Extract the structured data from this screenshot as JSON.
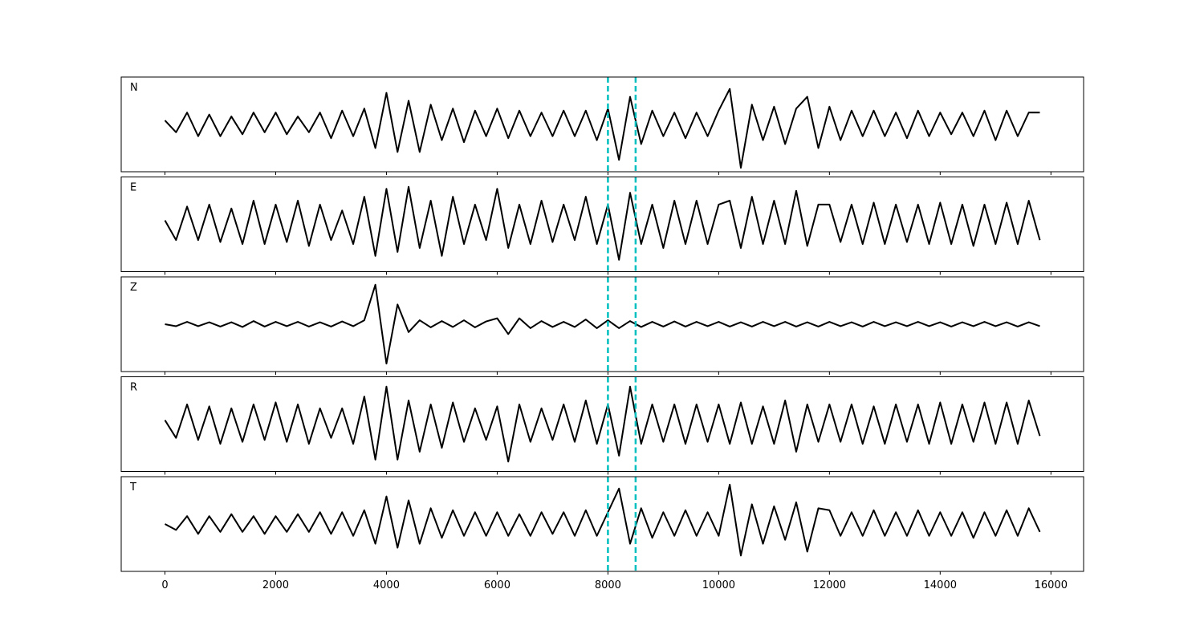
{
  "chart_data": [
    {
      "type": "line",
      "label": "N",
      "color": "#000000",
      "vline_color": "#00bfbf",
      "vlines": [
        8000,
        8500
      ],
      "xlim": [
        -790,
        16590
      ],
      "ylim": [
        -1.2,
        1.2
      ],
      "xticks": [
        0,
        2000,
        4000,
        6000,
        8000,
        10000,
        12000,
        14000,
        16000
      ],
      "x": [
        0,
        200,
        400,
        600,
        800,
        1000,
        1200,
        1400,
        1600,
        1800,
        2000,
        2200,
        2400,
        2600,
        2800,
        3000,
        3200,
        3400,
        3600,
        3800,
        4000,
        4200,
        4400,
        4600,
        4800,
        5000,
        5200,
        5400,
        5600,
        5800,
        6000,
        6200,
        6400,
        6600,
        6800,
        7000,
        7200,
        7400,
        7600,
        7800,
        8000,
        8200,
        8400,
        8600,
        8800,
        9000,
        9200,
        9400,
        9600,
        9800,
        10000,
        10200,
        10400,
        10600,
        10800,
        11000,
        11200,
        11400,
        11600,
        11800,
        12000,
        12200,
        12400,
        12600,
        12800,
        13000,
        13200,
        13400,
        13600,
        13800,
        14000,
        14200,
        14400,
        14600,
        14800,
        15000,
        15200,
        15400,
        15600,
        15800
      ],
      "values": [
        0.1,
        -0.2,
        0.3,
        -0.3,
        0.25,
        -0.3,
        0.2,
        -0.25,
        0.3,
        -0.2,
        0.3,
        -0.25,
        0.2,
        -0.2,
        0.3,
        -0.35,
        0.35,
        -0.3,
        0.4,
        -0.6,
        0.8,
        -0.7,
        0.6,
        -0.7,
        0.5,
        -0.4,
        0.4,
        -0.45,
        0.35,
        -0.3,
        0.4,
        -0.35,
        0.35,
        -0.3,
        0.3,
        -0.3,
        0.35,
        -0.3,
        0.35,
        -0.4,
        0.4,
        -0.9,
        0.7,
        -0.5,
        0.35,
        -0.3,
        0.3,
        -0.35,
        0.3,
        -0.3,
        0.35,
        0.9,
        -1.1,
        0.5,
        -0.4,
        0.45,
        -0.5,
        0.4,
        0.7,
        -0.6,
        0.45,
        -0.4,
        0.35,
        -0.3,
        0.35,
        -0.3,
        0.3,
        -0.35,
        0.35,
        -0.3,
        0.3,
        -0.25,
        0.3,
        -0.3,
        0.35,
        -0.4,
        0.35,
        -0.3,
        0.3,
        0.3
      ]
    },
    {
      "type": "line",
      "label": "E",
      "color": "#000000",
      "vline_color": "#00bfbf",
      "vlines": [
        8000,
        8500
      ],
      "xlim": [
        -790,
        16590
      ],
      "ylim": [
        -1.2,
        1.2
      ],
      "xticks": [
        0,
        2000,
        4000,
        6000,
        8000,
        10000,
        12000,
        14000,
        16000
      ],
      "x": [
        0,
        200,
        400,
        600,
        800,
        1000,
        1200,
        1400,
        1600,
        1800,
        2000,
        2200,
        2400,
        2600,
        2800,
        3000,
        3200,
        3400,
        3600,
        3800,
        4000,
        4200,
        4400,
        4600,
        4800,
        5000,
        5200,
        5400,
        5600,
        5800,
        6000,
        6200,
        6400,
        6600,
        6800,
        7000,
        7200,
        7400,
        7600,
        7800,
        8000,
        8200,
        8400,
        8600,
        8800,
        9000,
        9200,
        9400,
        9600,
        9800,
        10000,
        10200,
        10400,
        10600,
        10800,
        11000,
        11200,
        11400,
        11600,
        11800,
        12000,
        12200,
        12400,
        12600,
        12800,
        13000,
        13200,
        13400,
        13600,
        13800,
        14000,
        14200,
        14400,
        14600,
        14800,
        15000,
        15200,
        15400,
        15600,
        15800
      ],
      "values": [
        0.1,
        -0.4,
        0.45,
        -0.4,
        0.5,
        -0.45,
        0.4,
        -0.5,
        0.6,
        -0.5,
        0.5,
        -0.45,
        0.6,
        -0.55,
        0.5,
        -0.4,
        0.35,
        -0.5,
        0.7,
        -0.8,
        0.9,
        -0.7,
        0.95,
        -0.6,
        0.6,
        -0.8,
        0.7,
        -0.5,
        0.5,
        -0.4,
        0.9,
        -0.6,
        0.5,
        -0.5,
        0.6,
        -0.45,
        0.5,
        -0.4,
        0.7,
        -0.5,
        0.5,
        -0.9,
        0.8,
        -0.5,
        0.5,
        -0.6,
        0.6,
        -0.5,
        0.6,
        -0.5,
        0.5,
        0.6,
        -0.6,
        0.7,
        -0.5,
        0.6,
        -0.5,
        0.85,
        -0.55,
        0.5,
        0.5,
        -0.45,
        0.5,
        -0.5,
        0.55,
        -0.5,
        0.5,
        -0.45,
        0.5,
        -0.5,
        0.55,
        -0.5,
        0.5,
        -0.55,
        0.5,
        -0.5,
        0.55,
        -0.5,
        0.6,
        -0.4
      ]
    },
    {
      "type": "line",
      "label": "Z",
      "color": "#000000",
      "vline_color": "#00bfbf",
      "vlines": [
        8000,
        8500
      ],
      "xlim": [
        -790,
        16590
      ],
      "ylim": [
        -1.2,
        1.2
      ],
      "xticks": [
        0,
        2000,
        4000,
        6000,
        8000,
        10000,
        12000,
        14000,
        16000
      ],
      "x": [
        0,
        200,
        400,
        600,
        800,
        1000,
        1200,
        1400,
        1600,
        1800,
        2000,
        2200,
        2400,
        2600,
        2800,
        3000,
        3200,
        3400,
        3600,
        3800,
        4000,
        4200,
        4400,
        4600,
        4800,
        5000,
        5200,
        5400,
        5600,
        5800,
        6000,
        6200,
        6400,
        6600,
        6800,
        7000,
        7200,
        7400,
        7600,
        7800,
        8000,
        8200,
        8400,
        8600,
        8800,
        9000,
        9200,
        9400,
        9600,
        9800,
        10000,
        10200,
        10400,
        10600,
        10800,
        11000,
        11200,
        11400,
        11600,
        11800,
        12000,
        12200,
        12400,
        12600,
        12800,
        13000,
        13200,
        13400,
        13600,
        13800,
        14000,
        14200,
        14400,
        14600,
        14800,
        15000,
        15200,
        15400,
        15600,
        15800
      ],
      "values": [
        0.0,
        -0.05,
        0.06,
        -0.05,
        0.05,
        -0.06,
        0.05,
        -0.07,
        0.08,
        -0.06,
        0.06,
        -0.05,
        0.06,
        -0.06,
        0.05,
        -0.06,
        0.07,
        -0.05,
        0.1,
        1.0,
        -1.0,
        0.5,
        -0.2,
        0.1,
        -0.08,
        0.08,
        -0.07,
        0.1,
        -0.08,
        0.07,
        0.15,
        -0.25,
        0.15,
        -0.1,
        0.08,
        -0.07,
        0.06,
        -0.07,
        0.12,
        -0.1,
        0.1,
        -0.1,
        0.08,
        -0.07,
        0.06,
        -0.06,
        0.07,
        -0.06,
        0.06,
        -0.05,
        0.06,
        -0.06,
        0.05,
        -0.06,
        0.06,
        -0.05,
        0.06,
        -0.06,
        0.05,
        -0.06,
        0.06,
        -0.05,
        0.05,
        -0.06,
        0.06,
        -0.05,
        0.05,
        -0.05,
        0.06,
        -0.05,
        0.05,
        -0.06,
        0.05,
        -0.05,
        0.06,
        -0.05,
        0.05,
        -0.06,
        0.05,
        -0.05
      ]
    },
    {
      "type": "line",
      "label": "R",
      "color": "#000000",
      "vline_color": "#00bfbf",
      "vlines": [
        8000,
        8500
      ],
      "xlim": [
        -790,
        16590
      ],
      "ylim": [
        -1.2,
        1.2
      ],
      "xticks": [
        0,
        2000,
        4000,
        6000,
        8000,
        10000,
        12000,
        14000,
        16000
      ],
      "x": [
        0,
        200,
        400,
        600,
        800,
        1000,
        1200,
        1400,
        1600,
        1800,
        2000,
        2200,
        2400,
        2600,
        2800,
        3000,
        3200,
        3400,
        3600,
        3800,
        4000,
        4200,
        4400,
        4600,
        4800,
        5000,
        5200,
        5400,
        5600,
        5800,
        6000,
        6200,
        6400,
        6600,
        6800,
        7000,
        7200,
        7400,
        7600,
        7800,
        8000,
        8200,
        8400,
        8600,
        8800,
        9000,
        9200,
        9400,
        9600,
        9800,
        10000,
        10200,
        10400,
        10600,
        10800,
        11000,
        11200,
        11400,
        11600,
        11800,
        12000,
        12200,
        12400,
        12600,
        12800,
        13000,
        13200,
        13400,
        13600,
        13800,
        14000,
        14200,
        14400,
        14600,
        14800,
        15000,
        15200,
        15400,
        15600,
        15800
      ],
      "values": [
        0.1,
        -0.35,
        0.5,
        -0.4,
        0.45,
        -0.5,
        0.4,
        -0.45,
        0.5,
        -0.4,
        0.55,
        -0.45,
        0.5,
        -0.5,
        0.4,
        -0.35,
        0.4,
        -0.5,
        0.7,
        -0.9,
        0.95,
        -0.9,
        0.6,
        -0.7,
        0.5,
        -0.6,
        0.55,
        -0.45,
        0.4,
        -0.4,
        0.45,
        -0.95,
        0.5,
        -0.45,
        0.4,
        -0.4,
        0.5,
        -0.45,
        0.6,
        -0.5,
        0.5,
        -0.8,
        0.95,
        -0.5,
        0.5,
        -0.45,
        0.5,
        -0.5,
        0.5,
        -0.45,
        0.5,
        -0.5,
        0.55,
        -0.5,
        0.45,
        -0.5,
        0.6,
        -0.7,
        0.5,
        -0.45,
        0.5,
        -0.45,
        0.5,
        -0.5,
        0.45,
        -0.5,
        0.5,
        -0.45,
        0.5,
        -0.5,
        0.55,
        -0.5,
        0.5,
        -0.45,
        0.55,
        -0.5,
        0.55,
        -0.5,
        0.6,
        -0.3
      ]
    },
    {
      "type": "line",
      "label": "T",
      "color": "#000000",
      "vline_color": "#00bfbf",
      "vlines": [
        8000,
        8500
      ],
      "xlim": [
        -790,
        16590
      ],
      "ylim": [
        -1.2,
        1.2
      ],
      "xticks": [
        0,
        2000,
        4000,
        6000,
        8000,
        10000,
        12000,
        14000,
        16000
      ],
      "x": [
        0,
        200,
        400,
        600,
        800,
        1000,
        1200,
        1400,
        1600,
        1800,
        2000,
        2200,
        2400,
        2600,
        2800,
        3000,
        3200,
        3400,
        3600,
        3800,
        4000,
        4200,
        4400,
        4600,
        4800,
        5000,
        5200,
        5400,
        5600,
        5800,
        6000,
        6200,
        6400,
        6600,
        6800,
        7000,
        7200,
        7400,
        7600,
        7800,
        8000,
        8200,
        8400,
        8600,
        8800,
        9000,
        9200,
        9400,
        9600,
        9800,
        10000,
        10200,
        10400,
        10600,
        10800,
        11000,
        11200,
        11400,
        11600,
        11800,
        12000,
        12200,
        12400,
        12600,
        12800,
        13000,
        13200,
        13400,
        13600,
        13800,
        14000,
        14200,
        14400,
        14600,
        14800,
        15000,
        15200,
        15400,
        15600,
        15800
      ],
      "values": [
        0.0,
        -0.15,
        0.2,
        -0.25,
        0.2,
        -0.2,
        0.25,
        -0.2,
        0.2,
        -0.25,
        0.2,
        -0.2,
        0.25,
        -0.2,
        0.3,
        -0.25,
        0.3,
        -0.3,
        0.35,
        -0.5,
        0.7,
        -0.6,
        0.6,
        -0.5,
        0.4,
        -0.35,
        0.35,
        -0.3,
        0.3,
        -0.3,
        0.3,
        -0.3,
        0.25,
        -0.3,
        0.3,
        -0.25,
        0.3,
        -0.3,
        0.35,
        -0.3,
        0.3,
        0.9,
        -0.5,
        0.4,
        -0.35,
        0.3,
        -0.3,
        0.35,
        -0.3,
        0.3,
        -0.3,
        1.0,
        -0.8,
        0.5,
        -0.5,
        0.45,
        -0.4,
        0.55,
        -0.7,
        0.4,
        0.35,
        -0.3,
        0.3,
        -0.3,
        0.35,
        -0.3,
        0.3,
        -0.3,
        0.35,
        -0.3,
        0.3,
        -0.3,
        0.3,
        -0.35,
        0.3,
        -0.3,
        0.35,
        -0.3,
        0.4,
        -0.2
      ]
    }
  ]
}
